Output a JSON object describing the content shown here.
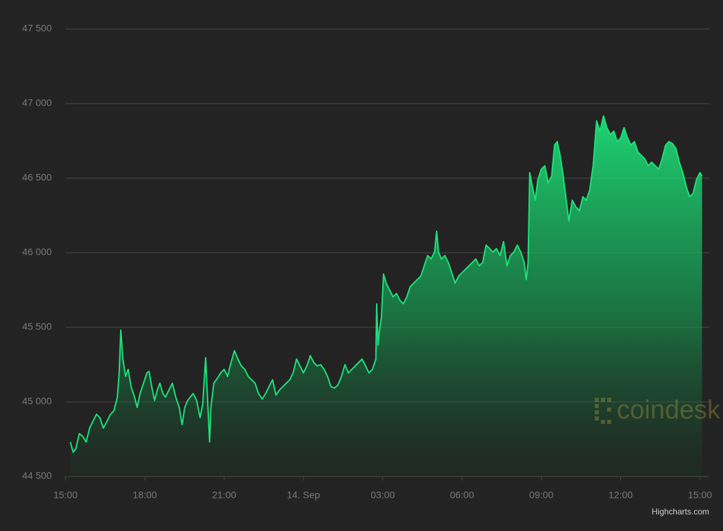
{
  "chart_data": {
    "type": "area",
    "credit": "Highcharts.com",
    "watermark": "coindesk",
    "color": "#1ee07a",
    "grid": true,
    "xlim": [
      0,
      24.35
    ],
    "ylim": [
      44500,
      47500
    ],
    "yticks": [
      {
        "value": 44500,
        "label": "44 500"
      },
      {
        "value": 45000,
        "label": "45 000"
      },
      {
        "value": 45500,
        "label": "45 500"
      },
      {
        "value": 46000,
        "label": "46 000"
      },
      {
        "value": 46500,
        "label": "46 500"
      },
      {
        "value": 47000,
        "label": "47 000"
      },
      {
        "value": 47500,
        "label": "47 500"
      }
    ],
    "xticks": [
      {
        "value": 0,
        "label": "15:00"
      },
      {
        "value": 3,
        "label": "18:00"
      },
      {
        "value": 6,
        "label": "21:00"
      },
      {
        "value": 9,
        "label": "14. Sep"
      },
      {
        "value": 12,
        "label": "03:00"
      },
      {
        "value": 15,
        "label": "06:00"
      },
      {
        "value": 18,
        "label": "09:00"
      },
      {
        "value": 21,
        "label": "12:00"
      },
      {
        "value": 24,
        "label": "15:00"
      }
    ],
    "x": [
      0.18,
      0.29,
      0.39,
      0.52,
      0.65,
      0.78,
      0.91,
      1.04,
      1.17,
      1.3,
      1.43,
      1.57,
      1.7,
      1.83,
      1.96,
      2.03,
      2.09,
      2.17,
      2.27,
      2.37,
      2.48,
      2.61,
      2.71,
      2.82,
      2.95,
      3.08,
      3.16,
      3.26,
      3.37,
      3.47,
      3.57,
      3.68,
      3.78,
      3.91,
      4.04,
      4.17,
      4.3,
      4.41,
      4.51,
      4.62,
      4.72,
      4.83,
      4.96,
      5.09,
      5.19,
      5.3,
      5.35,
      5.4,
      5.45,
      5.5,
      5.61,
      5.74,
      5.87,
      6.0,
      6.13,
      6.26,
      6.39,
      6.52,
      6.65,
      6.78,
      6.91,
      7.04,
      7.17,
      7.3,
      7.44,
      7.57,
      7.7,
      7.83,
      7.96,
      8.09,
      8.22,
      8.35,
      8.48,
      8.61,
      8.74,
      8.87,
      9.0,
      9.13,
      9.26,
      9.39,
      9.52,
      9.65,
      9.78,
      9.91,
      10.04,
      10.17,
      10.3,
      10.44,
      10.57,
      10.7,
      10.83,
      10.96,
      11.09,
      11.22,
      11.35,
      11.48,
      11.61,
      11.74,
      11.77,
      11.82,
      11.87,
      11.95,
      12.03,
      12.13,
      12.26,
      12.39,
      12.52,
      12.65,
      12.78,
      12.91,
      13.04,
      13.17,
      13.3,
      13.44,
      13.57,
      13.7,
      13.83,
      13.96,
      14.04,
      14.11,
      14.22,
      14.35,
      14.48,
      14.61,
      14.74,
      14.87,
      15.0,
      15.13,
      15.26,
      15.39,
      15.52,
      15.65,
      15.78,
      15.91,
      16.04,
      16.17,
      16.3,
      16.44,
      16.57,
      16.7,
      16.83,
      16.96,
      17.09,
      17.22,
      17.35,
      17.43,
      17.5,
      17.56,
      17.66,
      17.77,
      17.87,
      18.0,
      18.13,
      18.26,
      18.39,
      18.5,
      18.6,
      18.71,
      18.81,
      18.91,
      19.04,
      19.17,
      19.31,
      19.44,
      19.57,
      19.7,
      19.83,
      19.96,
      20.09,
      20.22,
      20.35,
      20.48,
      20.61,
      20.74,
      20.87,
      21.0,
      21.13,
      21.26,
      21.39,
      21.52,
      21.65,
      21.78,
      21.91,
      22.04,
      22.17,
      22.31,
      22.44,
      22.57,
      22.7,
      22.83,
      22.96,
      23.09,
      23.22,
      23.35,
      23.48,
      23.61,
      23.74,
      23.87,
      24.0,
      24.08
    ],
    "values": [
      44731,
      44662,
      44685,
      44787,
      44769,
      44731,
      44824,
      44870,
      44917,
      44894,
      44824,
      44870,
      44917,
      44940,
      45032,
      45194,
      45481,
      45287,
      45171,
      45218,
      45102,
      45032,
      44963,
      45056,
      45125,
      45194,
      45204,
      45102,
      45009,
      45079,
      45125,
      45056,
      45032,
      45079,
      45125,
      45032,
      44963,
      44847,
      44963,
      45009,
      45032,
      45056,
      45009,
      44894,
      44986,
      45296,
      45102,
      44917,
      44731,
      44963,
      45125,
      45157,
      45194,
      45218,
      45171,
      45264,
      45343,
      45287,
      45241,
      45218,
      45171,
      45148,
      45125,
      45056,
      45019,
      45056,
      45102,
      45148,
      45046,
      45079,
      45102,
      45125,
      45148,
      45194,
      45287,
      45241,
      45194,
      45241,
      45310,
      45264,
      45241,
      45250,
      45218,
      45171,
      45102,
      45093,
      45111,
      45171,
      45250,
      45194,
      45218,
      45241,
      45264,
      45287,
      45241,
      45194,
      45218,
      45287,
      45657,
      45380,
      45472,
      45565,
      45857,
      45796,
      45750,
      45704,
      45727,
      45681,
      45657,
      45704,
      45773,
      45796,
      45819,
      45843,
      45912,
      45981,
      45958,
      46005,
      46144,
      46005,
      45958,
      45981,
      45935,
      45866,
      45796,
      45843,
      45866,
      45889,
      45912,
      45935,
      45958,
      45912,
      45935,
      46051,
      46028,
      46005,
      46028,
      45981,
      46074,
      45912,
      45981,
      46005,
      46051,
      46005,
      45935,
      45819,
      45935,
      46537,
      46445,
      46352,
      46491,
      46560,
      46583,
      46468,
      46514,
      46722,
      46745,
      46653,
      46537,
      46398,
      46213,
      46352,
      46306,
      46283,
      46375,
      46352,
      46421,
      46583,
      46884,
      46815,
      46917,
      46838,
      46792,
      46815,
      46745,
      46769,
      46838,
      46769,
      46722,
      46745,
      46676,
      46653,
      46630,
      46583,
      46607,
      46583,
      46560,
      46630,
      46722,
      46745,
      46732,
      46699,
      46607,
      46537,
      46445,
      46375,
      46398,
      46491,
      46537,
      46514
    ]
  }
}
